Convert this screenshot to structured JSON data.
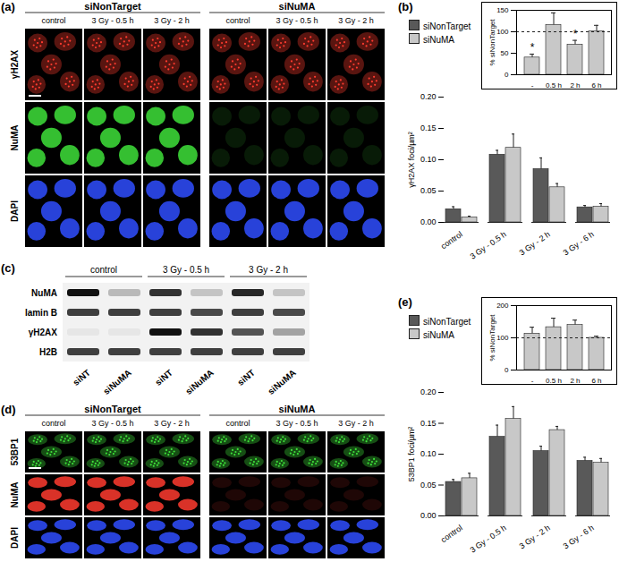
{
  "chart_data": [
    {
      "type": "bar",
      "title": "(b)",
      "ylabel": "γH2AX foci/µm²",
      "categories": [
        "control",
        "3 Gy - 0.5 h",
        "3 Gy - 2 h",
        "3 Gy - 6 h"
      ],
      "series": [
        {
          "name": "siNonTarget",
          "color": "#595959",
          "values": [
            0.021,
            0.108,
            0.085,
            0.024
          ],
          "errors": [
            0.004,
            0.007,
            0.018,
            0.003
          ]
        },
        {
          "name": "siNuMA",
          "color": "#c8c8c8",
          "values": [
            0.008,
            0.119,
            0.056,
            0.025
          ],
          "errors": [
            0.002,
            0.022,
            0.006,
            0.005
          ]
        }
      ],
      "ylim": [
        0,
        0.2
      ],
      "yticks": [
        {
          "value": 0,
          "label": "0.00"
        },
        {
          "value": 0.05,
          "label": "0.05"
        },
        {
          "value": 0.1,
          "label": "0.10"
        },
        {
          "value": 0.15,
          "label": "0.15"
        },
        {
          "value": 0.2,
          "label": "0.20"
        }
      ],
      "legend": "top-left"
    },
    {
      "type": "bar",
      "ylabel": "% siNonTarget",
      "categories": [
        "-",
        "0.5 h",
        "2 h",
        "6 h"
      ],
      "values": [
        40,
        116,
        70,
        101
      ],
      "errors": [
        8,
        28,
        10,
        14
      ],
      "color": "#c8c8c8",
      "ylim": [
        0,
        150
      ],
      "yticks": [
        0,
        50,
        100,
        150
      ],
      "reference_value": 100,
      "annotations": [
        {
          "category": "-",
          "text": "*"
        },
        {
          "category": "2 h",
          "text": "*"
        }
      ]
    },
    {
      "type": "bar",
      "title": "(e)",
      "ylabel": "53BP1 foci/µm²",
      "categories": [
        "control",
        "3 Gy - 0.5 h",
        "3 Gy - 2 h",
        "3 Gy - 6 h"
      ],
      "series": [
        {
          "name": "siNonTarget",
          "color": "#595959",
          "values": [
            0.055,
            0.128,
            0.105,
            0.089
          ],
          "errors": [
            0.004,
            0.019,
            0.008,
            0.006
          ]
        },
        {
          "name": "siNuMA",
          "color": "#c8c8c8",
          "values": [
            0.061,
            0.157,
            0.139,
            0.086
          ],
          "errors": [
            0.008,
            0.02,
            0.006,
            0.007
          ]
        }
      ],
      "ylim": [
        0,
        0.2
      ],
      "yticks": [
        {
          "value": 0,
          "label": "0.00"
        },
        {
          "value": 0.05,
          "label": "0.05"
        },
        {
          "value": 0.1,
          "label": "0.10"
        },
        {
          "value": 0.15,
          "label": "0.15"
        },
        {
          "value": 0.2,
          "label": "0.20"
        }
      ],
      "legend": "top-left"
    },
    {
      "type": "bar",
      "ylabel": "% siNonTarget",
      "categories": [
        "-",
        "0.5 h",
        "2 h",
        "6 h"
      ],
      "values": [
        113,
        133,
        140,
        100
      ],
      "errors": [
        20,
        28,
        15,
        5
      ],
      "color": "#c8c8c8",
      "ylim": [
        0,
        200
      ],
      "yticks": [
        0,
        100,
        200
      ],
      "reference_value": 100
    }
  ],
  "panel_a": {
    "label": "(a)",
    "groups": [
      "siNonTarget",
      "siNuMA"
    ],
    "columns": [
      "control",
      "3 Gy - 0.5 h",
      "3 Gy - 2 h"
    ],
    "rows": [
      {
        "name": "γH2AX",
        "color": "#ff3b2f"
      },
      {
        "name": "NuMA",
        "color": "#3ee03a"
      },
      {
        "name": "DAPI",
        "color": "#2f4dff"
      }
    ]
  },
  "panel_c": {
    "label": "(c)",
    "groups": [
      "control",
      "3 Gy - 0.5 h",
      "3 Gy - 2 h"
    ],
    "lanes": [
      "siNT",
      "siNuMA",
      "siNT",
      "siNuMA",
      "siNT",
      "siNuMA"
    ],
    "rows": [
      "NuMA",
      "lamin B",
      "γH2AX",
      "H2B"
    ]
  },
  "panel_d": {
    "label": "(d)",
    "groups": [
      "siNonTarget",
      "siNuMA"
    ],
    "columns": [
      "control",
      "3 Gy - 0.5 h",
      "3 Gy - 2 h"
    ],
    "rows": [
      {
        "name": "53BP1",
        "color": "#3ee03a"
      },
      {
        "name": "NuMA",
        "color": "#ff3b2f"
      },
      {
        "name": "DAPI",
        "color": "#2f4dff"
      }
    ]
  }
}
